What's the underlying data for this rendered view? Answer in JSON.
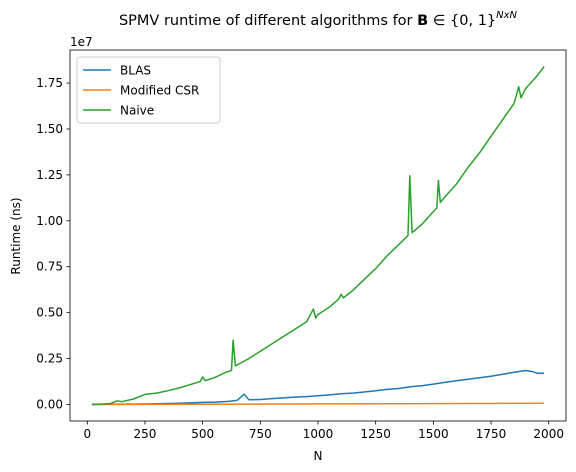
{
  "chart_data": {
    "type": "line",
    "title_prefix": "SPMV runtime of different algorithms for ",
    "title_bold": "B",
    "title_set": " ∈ {0, 1}",
    "title_sup": "NxN",
    "xlabel": "N",
    "ylabel": "Runtime (ns)",
    "y_offset_label": "1e7",
    "y_scale": 10000000,
    "xlim": [
      -75,
      2075
    ],
    "ylim": [
      -900000,
      19300000
    ],
    "x_ticks": [
      0,
      250,
      500,
      750,
      1000,
      1250,
      1500,
      1750,
      2000
    ],
    "x_tick_labels": [
      "0",
      "250",
      "500",
      "750",
      "1000",
      "1250",
      "1500",
      "1750",
      "2000"
    ],
    "y_ticks": [
      0,
      2500000,
      5000000,
      7500000,
      10000000,
      12500000,
      15000000,
      17500000
    ],
    "y_tick_labels": [
      "0.00",
      "0.25",
      "0.50",
      "0.75",
      "1.00",
      "1.25",
      "1.50",
      "1.75"
    ],
    "legend_position": "top-left",
    "grid": false,
    "series": [
      {
        "name": "BLAS",
        "color": "#1f77b4",
        "points": [
          [
            20,
            0
          ],
          [
            100,
            10000
          ],
          [
            200,
            20000
          ],
          [
            300,
            40000
          ],
          [
            400,
            70000
          ],
          [
            500,
            110000
          ],
          [
            560,
            130000
          ],
          [
            620,
            170000
          ],
          [
            650,
            230000
          ],
          [
            680,
            560000
          ],
          [
            700,
            260000
          ],
          [
            750,
            270000
          ],
          [
            800,
            320000
          ],
          [
            850,
            360000
          ],
          [
            900,
            400000
          ],
          [
            950,
            430000
          ],
          [
            1000,
            470000
          ],
          [
            1050,
            520000
          ],
          [
            1100,
            580000
          ],
          [
            1150,
            620000
          ],
          [
            1200,
            680000
          ],
          [
            1250,
            750000
          ],
          [
            1300,
            820000
          ],
          [
            1350,
            870000
          ],
          [
            1400,
            960000
          ],
          [
            1450,
            1020000
          ],
          [
            1500,
            1110000
          ],
          [
            1550,
            1200000
          ],
          [
            1600,
            1290000
          ],
          [
            1650,
            1370000
          ],
          [
            1700,
            1460000
          ],
          [
            1750,
            1540000
          ],
          [
            1800,
            1640000
          ],
          [
            1850,
            1750000
          ],
          [
            1900,
            1850000
          ],
          [
            1930,
            1790000
          ],
          [
            1950,
            1700000
          ],
          [
            1980,
            1700000
          ]
        ]
      },
      {
        "name": "Modified CSR",
        "color": "#ff7f0e",
        "points": [
          [
            20,
            0
          ],
          [
            500,
            15000
          ],
          [
            1000,
            30000
          ],
          [
            1500,
            50000
          ],
          [
            1980,
            70000
          ]
        ]
      },
      {
        "name": "Naive",
        "color": "#2ca02c",
        "points": [
          [
            20,
            0
          ],
          [
            100,
            50000
          ],
          [
            130,
            200000
          ],
          [
            150,
            150000
          ],
          [
            200,
            300000
          ],
          [
            250,
            550000
          ],
          [
            300,
            620000
          ],
          [
            350,
            750000
          ],
          [
            400,
            900000
          ],
          [
            450,
            1100000
          ],
          [
            490,
            1250000
          ],
          [
            500,
            1500000
          ],
          [
            510,
            1300000
          ],
          [
            550,
            1450000
          ],
          [
            600,
            1750000
          ],
          [
            625,
            1850000
          ],
          [
            632,
            3500000
          ],
          [
            642,
            2100000
          ],
          [
            700,
            2500000
          ],
          [
            750,
            2900000
          ],
          [
            800,
            3300000
          ],
          [
            850,
            3700000
          ],
          [
            900,
            4100000
          ],
          [
            950,
            4500000
          ],
          [
            980,
            5200000
          ],
          [
            990,
            4700000
          ],
          [
            1000,
            4900000
          ],
          [
            1050,
            5300000
          ],
          [
            1090,
            5750000
          ],
          [
            1100,
            6000000
          ],
          [
            1110,
            5800000
          ],
          [
            1150,
            6200000
          ],
          [
            1200,
            6800000
          ],
          [
            1250,
            7400000
          ],
          [
            1300,
            8100000
          ],
          [
            1350,
            8700000
          ],
          [
            1390,
            9200000
          ],
          [
            1398,
            12450000
          ],
          [
            1408,
            9350000
          ],
          [
            1450,
            9800000
          ],
          [
            1500,
            10500000
          ],
          [
            1515,
            10700000
          ],
          [
            1522,
            12200000
          ],
          [
            1530,
            11000000
          ],
          [
            1550,
            11300000
          ],
          [
            1600,
            12000000
          ],
          [
            1650,
            12900000
          ],
          [
            1700,
            13700000
          ],
          [
            1750,
            14600000
          ],
          [
            1800,
            15500000
          ],
          [
            1850,
            16400000
          ],
          [
            1870,
            17300000
          ],
          [
            1880,
            16700000
          ],
          [
            1900,
            17200000
          ],
          [
            1950,
            17900000
          ],
          [
            1980,
            18400000
          ]
        ]
      }
    ]
  }
}
